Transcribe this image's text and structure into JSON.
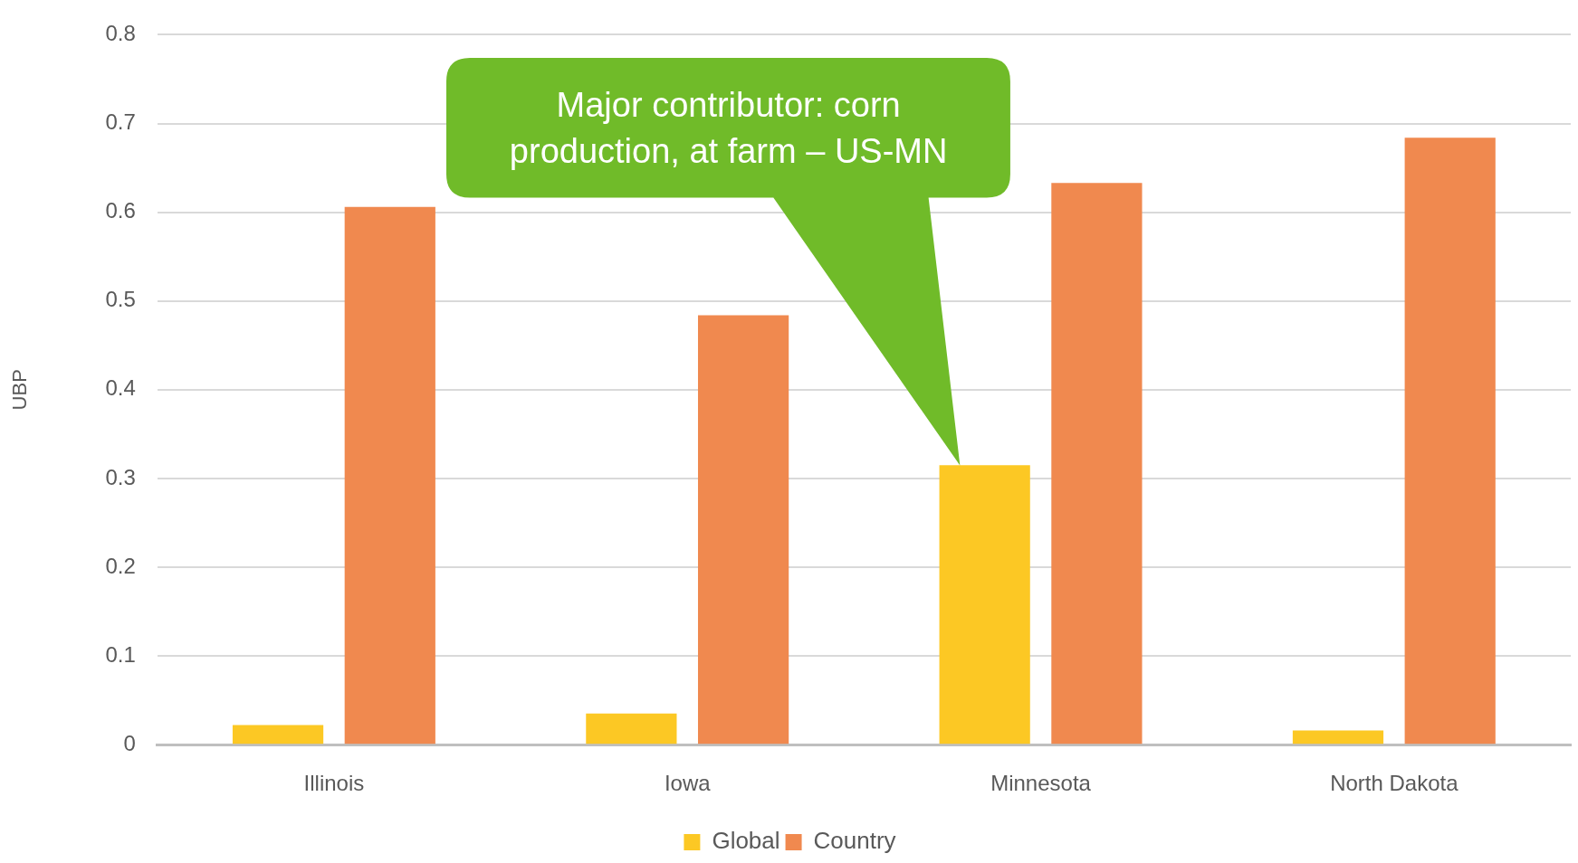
{
  "chart_data": {
    "type": "bar",
    "categories": [
      "Illinois",
      "Iowa",
      "Minnesota",
      "North Dakota"
    ],
    "series": [
      {
        "name": "Global",
        "color": "#fcc824",
        "values": [
          0.022,
          0.035,
          0.315,
          0.016
        ]
      },
      {
        "name": "Country",
        "color": "#f0894f",
        "values": [
          0.606,
          0.484,
          0.633,
          0.684
        ]
      }
    ],
    "ylabel": "UBP",
    "ylim": [
      0,
      0.8
    ],
    "yticks": [
      0,
      0.1,
      0.2,
      0.3,
      0.4,
      0.5,
      0.6,
      0.7,
      0.8
    ],
    "grid": "y",
    "legend": "bottom",
    "annotations": [
      "Major contributor: corn production, at farm – US-MN"
    ]
  }
}
